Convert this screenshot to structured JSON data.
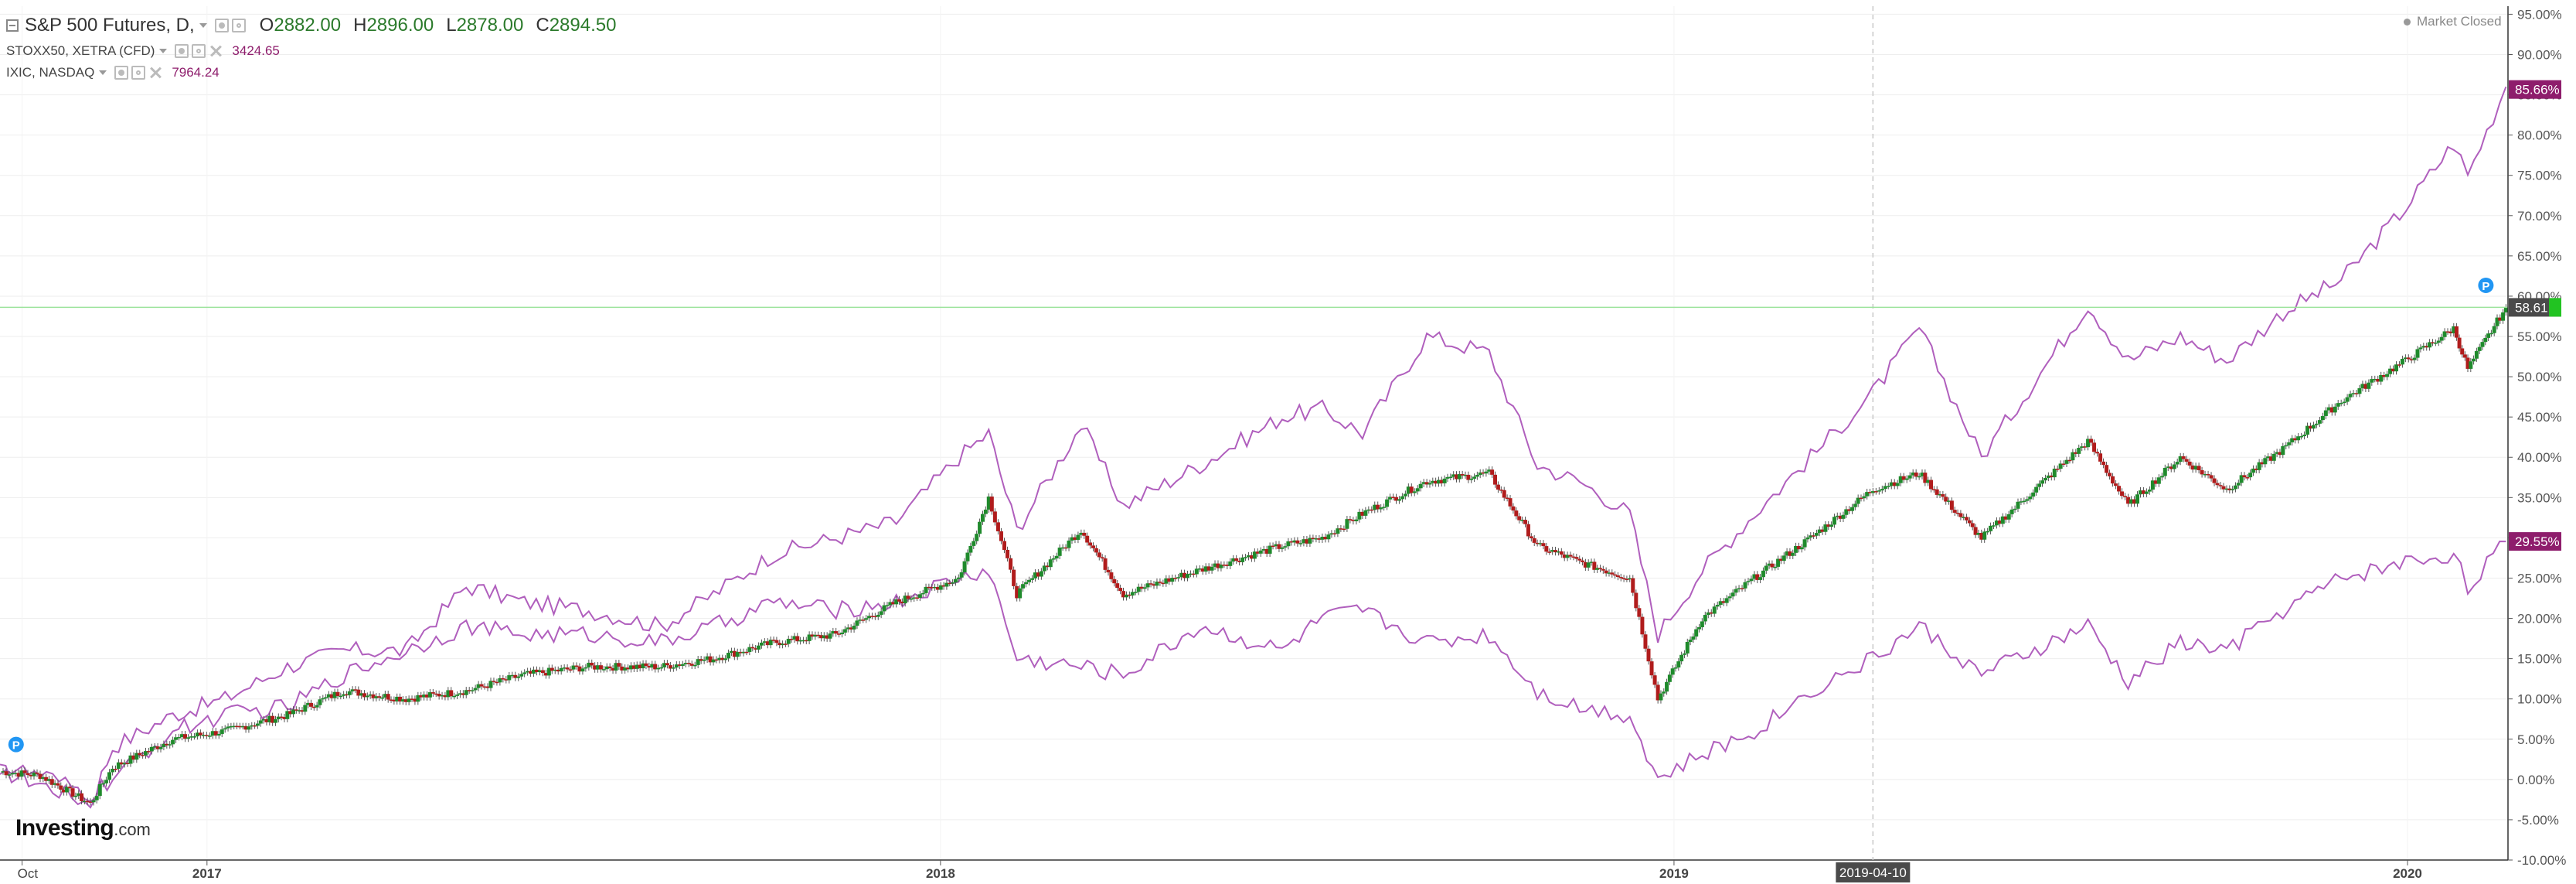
{
  "legend": {
    "main": {
      "symbol": "S&P 500 Futures, D,",
      "ohlc": [
        {
          "k": "O",
          "v": "2882.00"
        },
        {
          "k": "H",
          "v": "2896.00"
        },
        {
          "k": "L",
          "v": "2878.00"
        },
        {
          "k": "C",
          "v": "2894.50"
        }
      ]
    },
    "compare": [
      {
        "symbol": "STOXX50, XETRA (CFD)",
        "value": "3424.65"
      },
      {
        "symbol": "IXIC, NASDAQ",
        "value": "7964.24"
      }
    ]
  },
  "status": {
    "market": "Market Closed"
  },
  "logo": {
    "main": "Investing",
    "suffix": ".com"
  },
  "colors": {
    "compare_line": "#b05fbd",
    "candle_up": "#1f8a2c",
    "candle_down": "#b01c1c",
    "current_line": "#9be39b",
    "marker_blue": "#2196f3",
    "badge_purple": "#8e1d6c",
    "badge_dark": "#4a4a4a",
    "badge_green": "#22c322"
  },
  "chart_data": {
    "type": "line",
    "title": "",
    "xlabel": "",
    "ylabel": "",
    "x_range": [
      "2016-09-20",
      "2020-02-20"
    ],
    "ylim": [
      -10,
      96
    ],
    "y_ticks": [
      "95.00%",
      "90.00%",
      "85.00%",
      "80.00%",
      "75.00%",
      "70.00%",
      "65.00%",
      "60.00%",
      "55.00%",
      "50.00%",
      "45.00%",
      "40.00%",
      "35.00%",
      "30.00%",
      "25.00%",
      "20.00%",
      "15.00%",
      "10.00%",
      "5.00%",
      "0.00%",
      "-5.00%",
      "-10.00%"
    ],
    "x_ticks": [
      "Oct",
      "2017",
      "2018",
      "2019",
      "2020"
    ],
    "crosshair": {
      "date": "2019-04-10",
      "label": "2019-04-10"
    },
    "current_level": 58.61,
    "badges": [
      {
        "label": "85.66%",
        "value": 85.66,
        "style": "purple"
      },
      {
        "label": "58.61",
        "value": 58.61,
        "style": "dark"
      },
      {
        "label": "29.55%",
        "value": 29.55,
        "style": "purple"
      }
    ],
    "series": [
      {
        "symbol": "IXIC, NASDAQ",
        "kind": "line",
        "points": [
          [
            "2016-09-20",
            1
          ],
          [
            "2016-10-10",
            -0.5
          ],
          [
            "2016-11-04",
            -3
          ],
          [
            "2016-11-15",
            4
          ],
          [
            "2016-12-15",
            8
          ],
          [
            "2017-01-10",
            10
          ],
          [
            "2017-02-10",
            14
          ],
          [
            "2017-03-10",
            16
          ],
          [
            "2017-04-10",
            16
          ],
          [
            "2017-05-10",
            24
          ],
          [
            "2017-06-08",
            22
          ],
          [
            "2017-07-10",
            21
          ],
          [
            "2017-08-15",
            19
          ],
          [
            "2017-09-10",
            23
          ],
          [
            "2017-10-10",
            28
          ],
          [
            "2017-11-10",
            30
          ],
          [
            "2017-12-10",
            32
          ],
          [
            "2018-01-10",
            40
          ],
          [
            "2018-01-25",
            43
          ],
          [
            "2018-02-08",
            31
          ],
          [
            "2018-03-12",
            44
          ],
          [
            "2018-04-02",
            34
          ],
          [
            "2018-05-10",
            39
          ],
          [
            "2018-06-20",
            45
          ],
          [
            "2018-07-10",
            46
          ],
          [
            "2018-07-30",
            43
          ],
          [
            "2018-08-31",
            55
          ],
          [
            "2018-10-01",
            53
          ],
          [
            "2018-10-25",
            39
          ],
          [
            "2018-11-15",
            37
          ],
          [
            "2018-12-10",
            33
          ],
          [
            "2018-12-24",
            18
          ],
          [
            "2019-01-15",
            26
          ],
          [
            "2019-02-10",
            33
          ],
          [
            "2019-03-10",
            40
          ],
          [
            "2019-04-10",
            48
          ],
          [
            "2019-05-03",
            56
          ],
          [
            "2019-06-03",
            40
          ],
          [
            "2019-07-26",
            59
          ],
          [
            "2019-08-15",
            52
          ],
          [
            "2019-09-10",
            55
          ],
          [
            "2019-10-03",
            52
          ],
          [
            "2019-10-31",
            58
          ],
          [
            "2019-11-29",
            62
          ],
          [
            "2019-12-31",
            71
          ],
          [
            "2020-01-24",
            79
          ],
          [
            "2020-01-31",
            75
          ],
          [
            "2020-02-19",
            86
          ]
        ]
      },
      {
        "symbol": "STOXX50, XETRA (CFD)",
        "kind": "line",
        "points": [
          [
            "2016-09-20",
            1.5
          ],
          [
            "2016-10-10",
            0.5
          ],
          [
            "2016-11-04",
            -2
          ],
          [
            "2016-11-15",
            0
          ],
          [
            "2016-12-15",
            6
          ],
          [
            "2017-01-10",
            8
          ],
          [
            "2017-02-10",
            9
          ],
          [
            "2017-03-10",
            13
          ],
          [
            "2017-04-10",
            16
          ],
          [
            "2017-05-10",
            19
          ],
          [
            "2017-06-08",
            18
          ],
          [
            "2017-07-10",
            18
          ],
          [
            "2017-08-15",
            17
          ],
          [
            "2017-09-10",
            19
          ],
          [
            "2017-10-10",
            22
          ],
          [
            "2017-11-10",
            21
          ],
          [
            "2017-12-10",
            22
          ],
          [
            "2018-01-10",
            25
          ],
          [
            "2018-01-25",
            26
          ],
          [
            "2018-02-08",
            15
          ],
          [
            "2018-03-12",
            14
          ],
          [
            "2018-04-02",
            13
          ],
          [
            "2018-05-10",
            19
          ],
          [
            "2018-06-20",
            16
          ],
          [
            "2018-07-10",
            20
          ],
          [
            "2018-07-30",
            21
          ],
          [
            "2018-08-31",
            17
          ],
          [
            "2018-10-01",
            18
          ],
          [
            "2018-10-25",
            11
          ],
          [
            "2018-11-15",
            9
          ],
          [
            "2018-12-10",
            8
          ],
          [
            "2018-12-24",
            0
          ],
          [
            "2019-01-15",
            3
          ],
          [
            "2019-02-10",
            6
          ],
          [
            "2019-03-10",
            11
          ],
          [
            "2019-04-10",
            15
          ],
          [
            "2019-05-03",
            19
          ],
          [
            "2019-06-03",
            13
          ],
          [
            "2019-07-26",
            19
          ],
          [
            "2019-08-15",
            12
          ],
          [
            "2019-09-10",
            17
          ],
          [
            "2019-10-03",
            16
          ],
          [
            "2019-10-31",
            21
          ],
          [
            "2019-11-29",
            25
          ],
          [
            "2019-12-31",
            27
          ],
          [
            "2020-01-24",
            28
          ],
          [
            "2020-01-31",
            24
          ],
          [
            "2020-02-19",
            29.55
          ]
        ]
      },
      {
        "symbol": "S&P 500 Futures, D,",
        "kind": "candlestick",
        "points": [
          [
            "2016-09-20",
            1
          ],
          [
            "2016-10-10",
            0.5
          ],
          [
            "2016-11-04",
            -3
          ],
          [
            "2016-11-15",
            1.5
          ],
          [
            "2016-12-15",
            5
          ],
          [
            "2017-01-10",
            6
          ],
          [
            "2017-02-10",
            8
          ],
          [
            "2017-03-10",
            11
          ],
          [
            "2017-04-10",
            10
          ],
          [
            "2017-05-10",
            11
          ],
          [
            "2017-06-08",
            13
          ],
          [
            "2017-07-10",
            14
          ],
          [
            "2017-08-15",
            14
          ],
          [
            "2017-09-10",
            15
          ],
          [
            "2017-10-10",
            17
          ],
          [
            "2017-11-10",
            18
          ],
          [
            "2017-12-10",
            22
          ],
          [
            "2018-01-10",
            25
          ],
          [
            "2018-01-25",
            35
          ],
          [
            "2018-02-08",
            23
          ],
          [
            "2018-03-12",
            31
          ],
          [
            "2018-04-02",
            23
          ],
          [
            "2018-05-10",
            26
          ],
          [
            "2018-06-20",
            29
          ],
          [
            "2018-07-10",
            30
          ],
          [
            "2018-07-30",
            33
          ],
          [
            "2018-08-31",
            37
          ],
          [
            "2018-10-01",
            38
          ],
          [
            "2018-10-25",
            29
          ],
          [
            "2018-11-15",
            27
          ],
          [
            "2018-12-10",
            25
          ],
          [
            "2018-12-24",
            10
          ],
          [
            "2019-01-15",
            20
          ],
          [
            "2019-02-10",
            25
          ],
          [
            "2019-03-10",
            30
          ],
          [
            "2019-04-10",
            36
          ],
          [
            "2019-05-03",
            38
          ],
          [
            "2019-06-03",
            30
          ],
          [
            "2019-07-26",
            42
          ],
          [
            "2019-08-15",
            34
          ],
          [
            "2019-09-10",
            40
          ],
          [
            "2019-10-03",
            36
          ],
          [
            "2019-10-31",
            41
          ],
          [
            "2019-11-29",
            47
          ],
          [
            "2019-12-31",
            52
          ],
          [
            "2020-01-24",
            56
          ],
          [
            "2020-01-31",
            51
          ],
          [
            "2020-02-19",
            58.61
          ]
        ]
      }
    ]
  }
}
